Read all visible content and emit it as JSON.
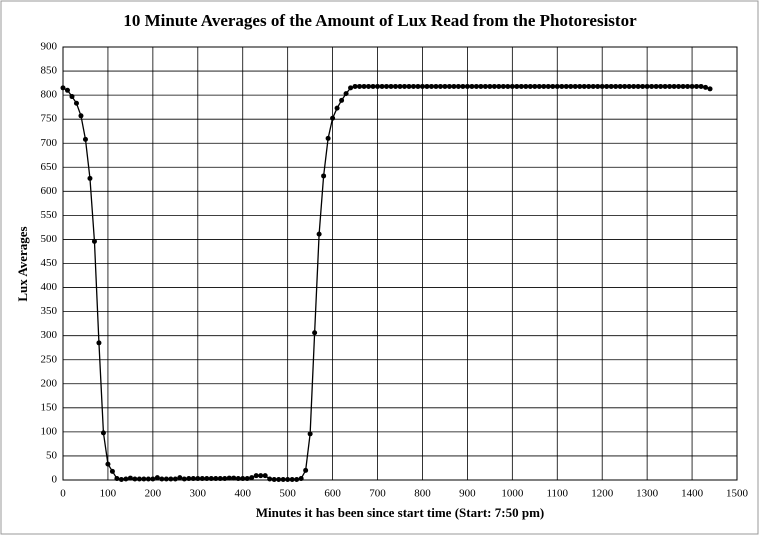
{
  "chart_data": {
    "type": "line",
    "title": "10 Minute Averages of the Amount of Lux Read from the Photoresistor",
    "x_label": "Minutes it has been since start time (Start: 7:50 pm)",
    "y_label": "Lux Averages",
    "x": [
      0,
      10,
      20,
      30,
      40,
      50,
      60,
      70,
      80,
      90,
      100,
      110,
      120,
      130,
      140,
      150,
      160,
      170,
      180,
      190,
      200,
      210,
      220,
      230,
      240,
      250,
      260,
      270,
      280,
      290,
      300,
      310,
      320,
      330,
      340,
      350,
      360,
      370,
      380,
      390,
      400,
      410,
      420,
      430,
      440,
      450,
      460,
      470,
      480,
      490,
      500,
      510,
      520,
      530,
      540,
      550,
      560,
      570,
      580,
      590,
      600,
      610,
      620,
      630,
      640,
      650,
      660,
      670,
      680,
      690,
      700,
      710,
      720,
      730,
      740,
      750,
      760,
      770,
      780,
      790,
      800,
      810,
      820,
      830,
      840,
      850,
      860,
      870,
      880,
      890,
      900,
      910,
      920,
      930,
      940,
      950,
      960,
      970,
      980,
      990,
      1000,
      1010,
      1020,
      1030,
      1040,
      1050,
      1060,
      1070,
      1080,
      1090,
      1100,
      1110,
      1120,
      1130,
      1140,
      1150,
      1160,
      1170,
      1180,
      1190,
      1200,
      1210,
      1220,
      1230,
      1240,
      1250,
      1260,
      1270,
      1280,
      1290,
      1300,
      1310,
      1320,
      1330,
      1340,
      1350,
      1360,
      1370,
      1380,
      1390,
      1400,
      1410,
      1420,
      1430,
      1440
    ],
    "series": [
      {
        "name": "Lux Averages",
        "color": "#000000",
        "values": [
          815,
          810,
          797,
          783,
          757,
          708,
          627,
          496,
          285,
          98,
          33,
          18,
          3,
          1,
          2,
          4,
          2,
          2,
          2,
          2,
          2,
          5,
          2,
          2,
          2,
          2,
          5,
          2,
          3,
          3,
          3,
          3,
          3,
          3,
          3,
          3,
          3,
          4,
          4,
          3,
          3,
          3,
          5,
          9,
          9,
          9,
          2,
          1,
          1,
          1,
          1,
          1,
          1,
          3,
          20,
          96,
          306,
          511,
          632,
          710,
          752,
          773,
          789,
          803,
          815,
          818,
          818,
          818,
          818,
          818,
          818,
          818,
          818,
          818,
          818,
          818,
          818,
          818,
          818,
          818,
          818,
          818,
          818,
          818,
          818,
          818,
          818,
          818,
          818,
          818,
          818,
          818,
          818,
          818,
          818,
          818,
          818,
          818,
          818,
          818,
          818,
          818,
          818,
          818,
          818,
          818,
          818,
          818,
          818,
          818,
          818,
          818,
          818,
          818,
          818,
          818,
          818,
          818,
          818,
          818,
          818,
          818,
          818,
          818,
          818,
          818,
          818,
          818,
          818,
          818,
          818,
          818,
          818,
          818,
          818,
          818,
          818,
          818,
          818,
          818,
          818,
          818,
          818,
          816,
          813
        ]
      }
    ],
    "xlim": [
      0,
      1500
    ],
    "xticks": [
      0,
      100,
      200,
      300,
      400,
      500,
      600,
      700,
      800,
      900,
      1000,
      1100,
      1200,
      1300,
      1400,
      1500
    ],
    "ylim": [
      0,
      900
    ],
    "yticks": [
      0,
      50,
      100,
      150,
      200,
      250,
      300,
      350,
      400,
      450,
      500,
      550,
      600,
      650,
      700,
      750,
      800,
      850,
      900
    ],
    "grid": true
  }
}
